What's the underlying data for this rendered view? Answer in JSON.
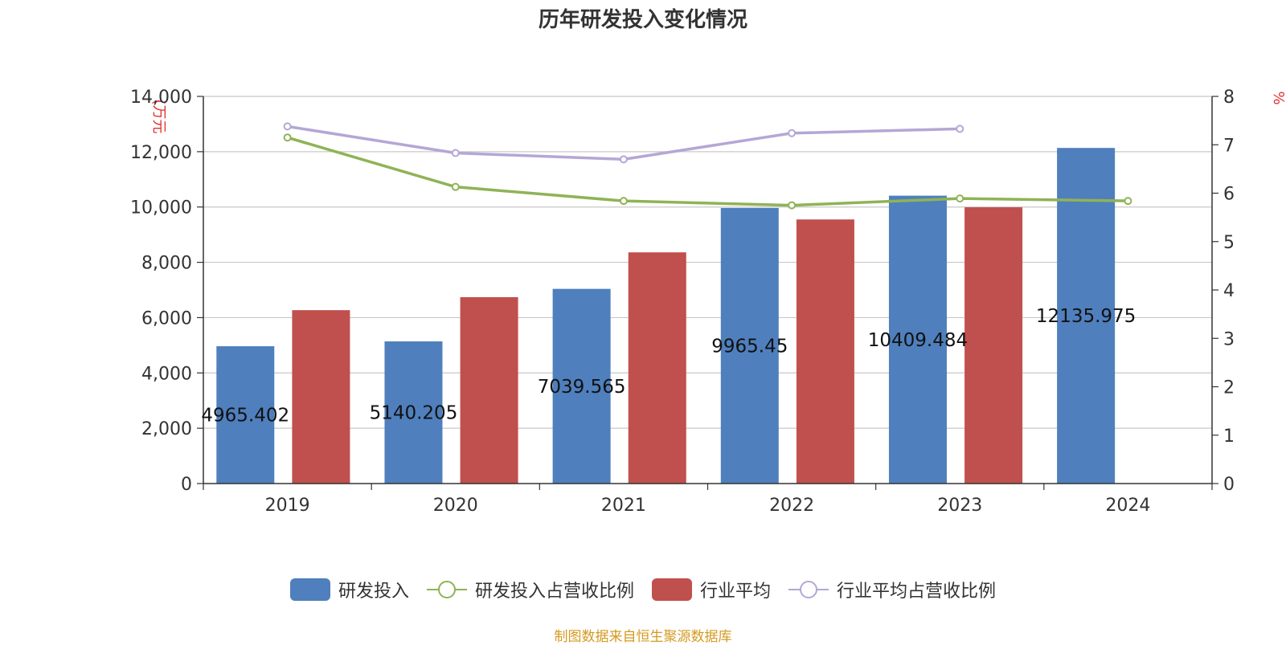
{
  "chart_data": {
    "type": "bar",
    "title": "历年研发投入变化情况",
    "categories": [
      "2019",
      "2020",
      "2021",
      "2022",
      "2023",
      "2024"
    ],
    "ylabel_left": "(万元",
    "ylabel_right": "%",
    "ylim_left": [
      0,
      14000
    ],
    "ylim_right": [
      0,
      8
    ],
    "yticks_left": [
      "0",
      "2,000",
      "4,000",
      "6,000",
      "8,000",
      "10,000",
      "12,000",
      "14,000"
    ],
    "yticks_right": [
      "0",
      "1",
      "2",
      "3",
      "4",
      "5",
      "6",
      "7",
      "8"
    ],
    "grid": true,
    "legend_position": "bottom",
    "series": [
      {
        "name": "研发投入",
        "type": "bar",
        "axis": "left",
        "color": "#4f7fbd",
        "values": [
          4965.402,
          5140.205,
          7039.565,
          9965.45,
          10409.484,
          12135.975
        ],
        "labels": [
          "4965.402",
          "5140.205",
          "7039.565",
          "9965.45",
          "10409.484",
          "12135.975"
        ]
      },
      {
        "name": "研发投入占营收比例",
        "type": "line",
        "axis": "right",
        "color": "#8fb356",
        "values": [
          7.15,
          6.13,
          5.84,
          5.75,
          5.89,
          5.84
        ]
      },
      {
        "name": "行业平均",
        "type": "bar",
        "axis": "left",
        "color": "#c0504d",
        "values": [
          6270,
          6740,
          8360,
          9550,
          9990,
          null
        ]
      },
      {
        "name": "行业平均占营收比例",
        "type": "line",
        "axis": "right",
        "color": "#b4a7d6",
        "values": [
          7.38,
          6.83,
          6.7,
          7.24,
          7.33,
          null
        ]
      }
    ]
  },
  "source": "制图数据来自恒生聚源数据库"
}
